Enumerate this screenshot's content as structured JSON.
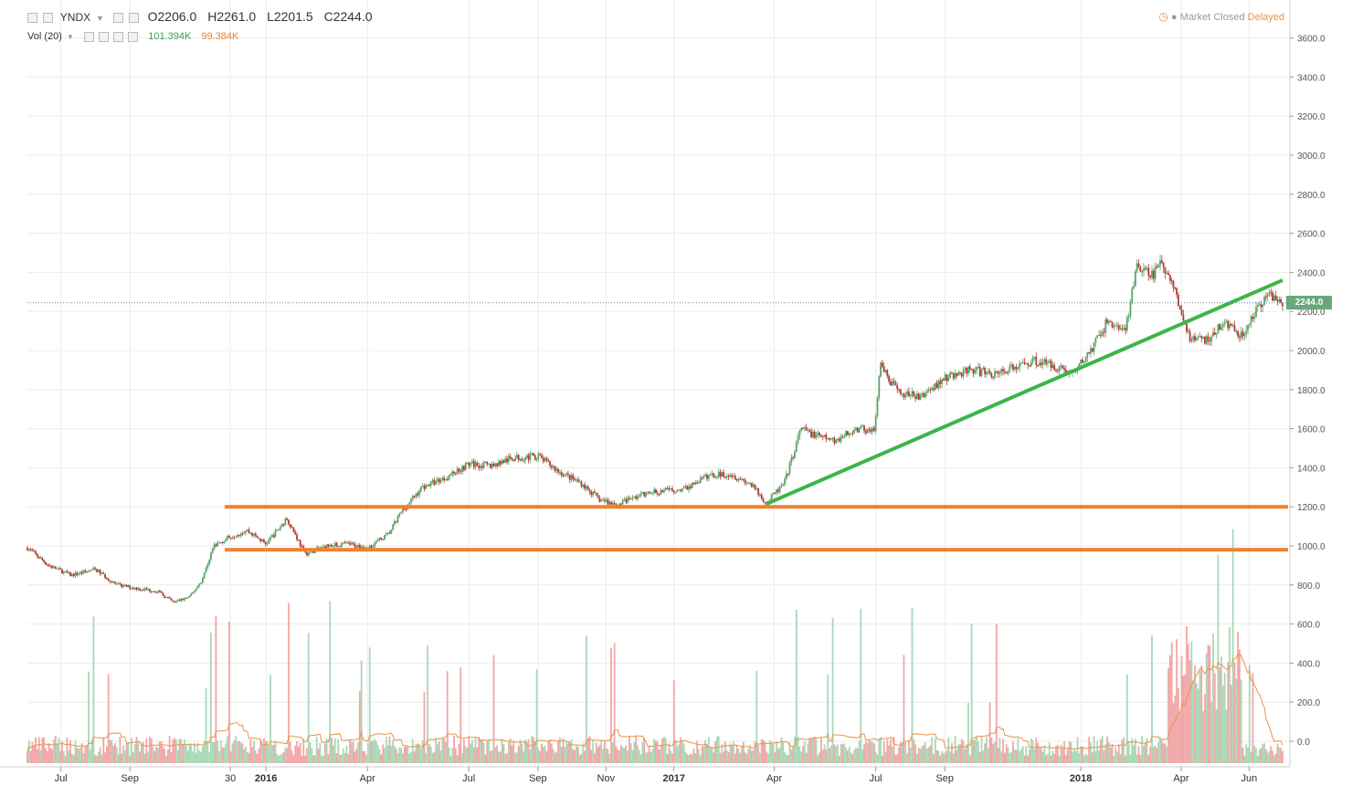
{
  "header": {
    "symbol": "YNDX",
    "open_label": "O",
    "open": "2206.0",
    "high_label": "H",
    "high": "2261.0",
    "low_label": "L",
    "low": "2201.5",
    "close_label": "C",
    "close": "2244.0",
    "vol_label": "Vol (20)",
    "vol_value": "101.394K",
    "vol_ma": "99.384K"
  },
  "status": {
    "market": "Market Closed",
    "delay": "Delayed"
  },
  "colors": {
    "up": "#5aa36b",
    "down": "#b33b32",
    "vol_up": "#a9d8b6",
    "vol_down": "#f2a6a6",
    "support": "#f0802e",
    "trend": "#3bb549",
    "vol_ma": "#e8954a",
    "grid": "#ececec"
  },
  "chart_data": {
    "type": "candlestick",
    "symbol": "YNDX",
    "y_axis_labels": [
      "3600.0",
      "3400.0",
      "3200.0",
      "3000.0",
      "2800.0",
      "2600.0",
      "2400.0",
      "2200.0",
      "2000.0",
      "1800.0",
      "1600.0",
      "1400.0",
      "1200.0",
      "1000.0",
      "800.0",
      "600.0",
      "400.0",
      "200.0",
      "0.0"
    ],
    "ylim": [
      0,
      3700
    ],
    "x_axis_labels": [
      "Jul",
      "Sep",
      "30",
      "2016",
      "Apr",
      "Jul",
      "Sep",
      "Nov",
      "2017",
      "Apr",
      "Jul",
      "Sep",
      "2018",
      "Apr",
      "Jun"
    ],
    "last_price_label": "2244.0",
    "price_path": [
      [
        "2015-06-01",
        990
      ],
      [
        "2015-06-20",
        900
      ],
      [
        "2015-07-10",
        850
      ],
      [
        "2015-08-01",
        880
      ],
      [
        "2015-08-20",
        800
      ],
      [
        "2015-09-10",
        780
      ],
      [
        "2015-09-25",
        770
      ],
      [
        "2015-10-10",
        710
      ],
      [
        "2015-10-25",
        740
      ],
      [
        "2015-11-05",
        830
      ],
      [
        "2015-11-15",
        1000
      ],
      [
        "2015-12-01",
        1050
      ],
      [
        "2015-12-15",
        1080
      ],
      [
        "2016-01-01",
        1010
      ],
      [
        "2016-01-20",
        1140
      ],
      [
        "2016-02-05",
        960
      ],
      [
        "2016-02-25",
        1000
      ],
      [
        "2016-03-15",
        1010
      ],
      [
        "2016-04-01",
        990
      ],
      [
        "2016-04-20",
        1060
      ],
      [
        "2016-05-01",
        1170
      ],
      [
        "2016-05-20",
        1300
      ],
      [
        "2016-06-10",
        1350
      ],
      [
        "2016-07-01",
        1420
      ],
      [
        "2016-07-20",
        1410
      ],
      [
        "2016-08-10",
        1450
      ],
      [
        "2016-09-01",
        1460
      ],
      [
        "2016-09-20",
        1380
      ],
      [
        "2016-10-10",
        1320
      ],
      [
        "2016-10-25",
        1240
      ],
      [
        "2016-11-10",
        1210
      ],
      [
        "2016-12-01",
        1260
      ],
      [
        "2016-12-20",
        1280
      ],
      [
        "2017-01-10",
        1290
      ],
      [
        "2017-02-01",
        1360
      ],
      [
        "2017-02-20",
        1370
      ],
      [
        "2017-03-10",
        1320
      ],
      [
        "2017-03-25",
        1220
      ],
      [
        "2017-04-10",
        1320
      ],
      [
        "2017-04-25",
        1600
      ],
      [
        "2017-05-10",
        1560
      ],
      [
        "2017-05-25",
        1540
      ],
      [
        "2017-06-15",
        1600
      ],
      [
        "2017-06-30",
        1590
      ],
      [
        "2017-07-05",
        1920
      ],
      [
        "2017-07-20",
        1790
      ],
      [
        "2017-08-10",
        1760
      ],
      [
        "2017-09-01",
        1860
      ],
      [
        "2017-09-25",
        1900
      ],
      [
        "2017-10-15",
        1880
      ],
      [
        "2017-11-01",
        1910
      ],
      [
        "2017-11-20",
        1950
      ],
      [
        "2017-12-10",
        1920
      ],
      [
        "2017-12-25",
        1880
      ],
      [
        "2018-01-10",
        2000
      ],
      [
        "2018-01-25",
        2150
      ],
      [
        "2018-02-10",
        2100
      ],
      [
        "2018-02-20",
        2430
      ],
      [
        "2018-03-05",
        2380
      ],
      [
        "2018-03-15",
        2450
      ],
      [
        "2018-03-30",
        2250
      ],
      [
        "2018-04-10",
        2050
      ],
      [
        "2018-04-25",
        2050
      ],
      [
        "2018-05-10",
        2150
      ],
      [
        "2018-05-25",
        2080
      ],
      [
        "2018-06-10",
        2230
      ],
      [
        "2018-06-20",
        2290
      ],
      [
        "2018-07-01",
        2244
      ]
    ],
    "volume_ma_line": "Vol (20)",
    "support_lines": [
      980,
      1200
    ],
    "trend_line": {
      "from": [
        "2017-03-25",
        1215
      ],
      "to": [
        "2018-07-01",
        2360
      ]
    },
    "grid": true
  }
}
